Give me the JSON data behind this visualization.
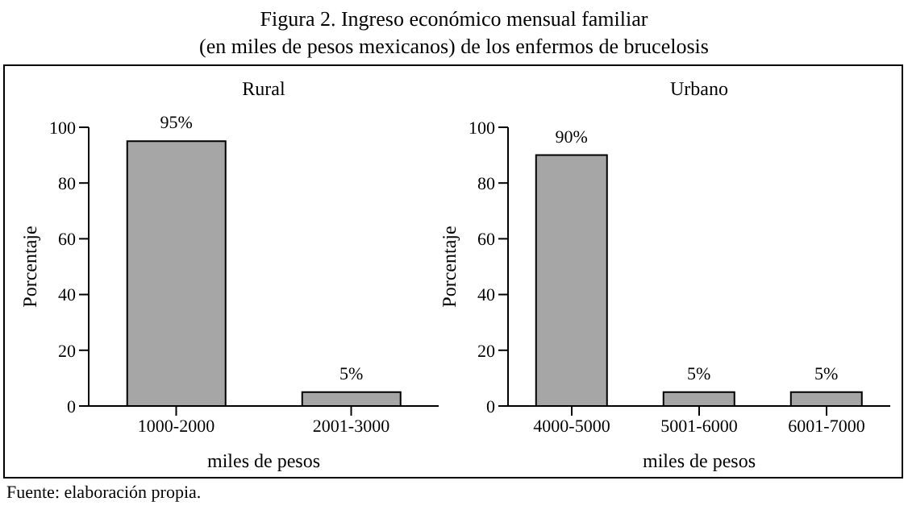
{
  "chart_data": [
    {
      "type": "bar",
      "title": "Figura 2. Ingreso económico mensual familiar\n(en miles de pesos mexicanos) de los enfermos de brucelosis",
      "subtitle": "Rural",
      "categories": [
        "1000-2000",
        "2001-3000"
      ],
      "values": [
        95,
        5
      ],
      "value_labels": [
        "95%",
        "5%"
      ],
      "color": "#a6a6a6",
      "ylim": [
        0,
        100
      ],
      "yticks": [
        0,
        20,
        40,
        60,
        80,
        100
      ],
      "xlabel": "miles de pesos",
      "ylabel": "Porcentaje",
      "annotations": [
        "Fuente: elaboración propia."
      ]
    },
    {
      "type": "bar",
      "subtitle": "Urbano",
      "categories": [
        "4000-5000",
        "5001-6000",
        "6001-7000"
      ],
      "values": [
        90,
        5,
        5
      ],
      "value_labels": [
        "90%",
        "5%",
        "5%"
      ],
      "color": "#a6a6a6",
      "ylim": [
        0,
        100
      ],
      "yticks": [
        0,
        20,
        40,
        60,
        80,
        100
      ],
      "xlabel": "miles de pesos",
      "ylabel": "Porcentaje"
    }
  ]
}
